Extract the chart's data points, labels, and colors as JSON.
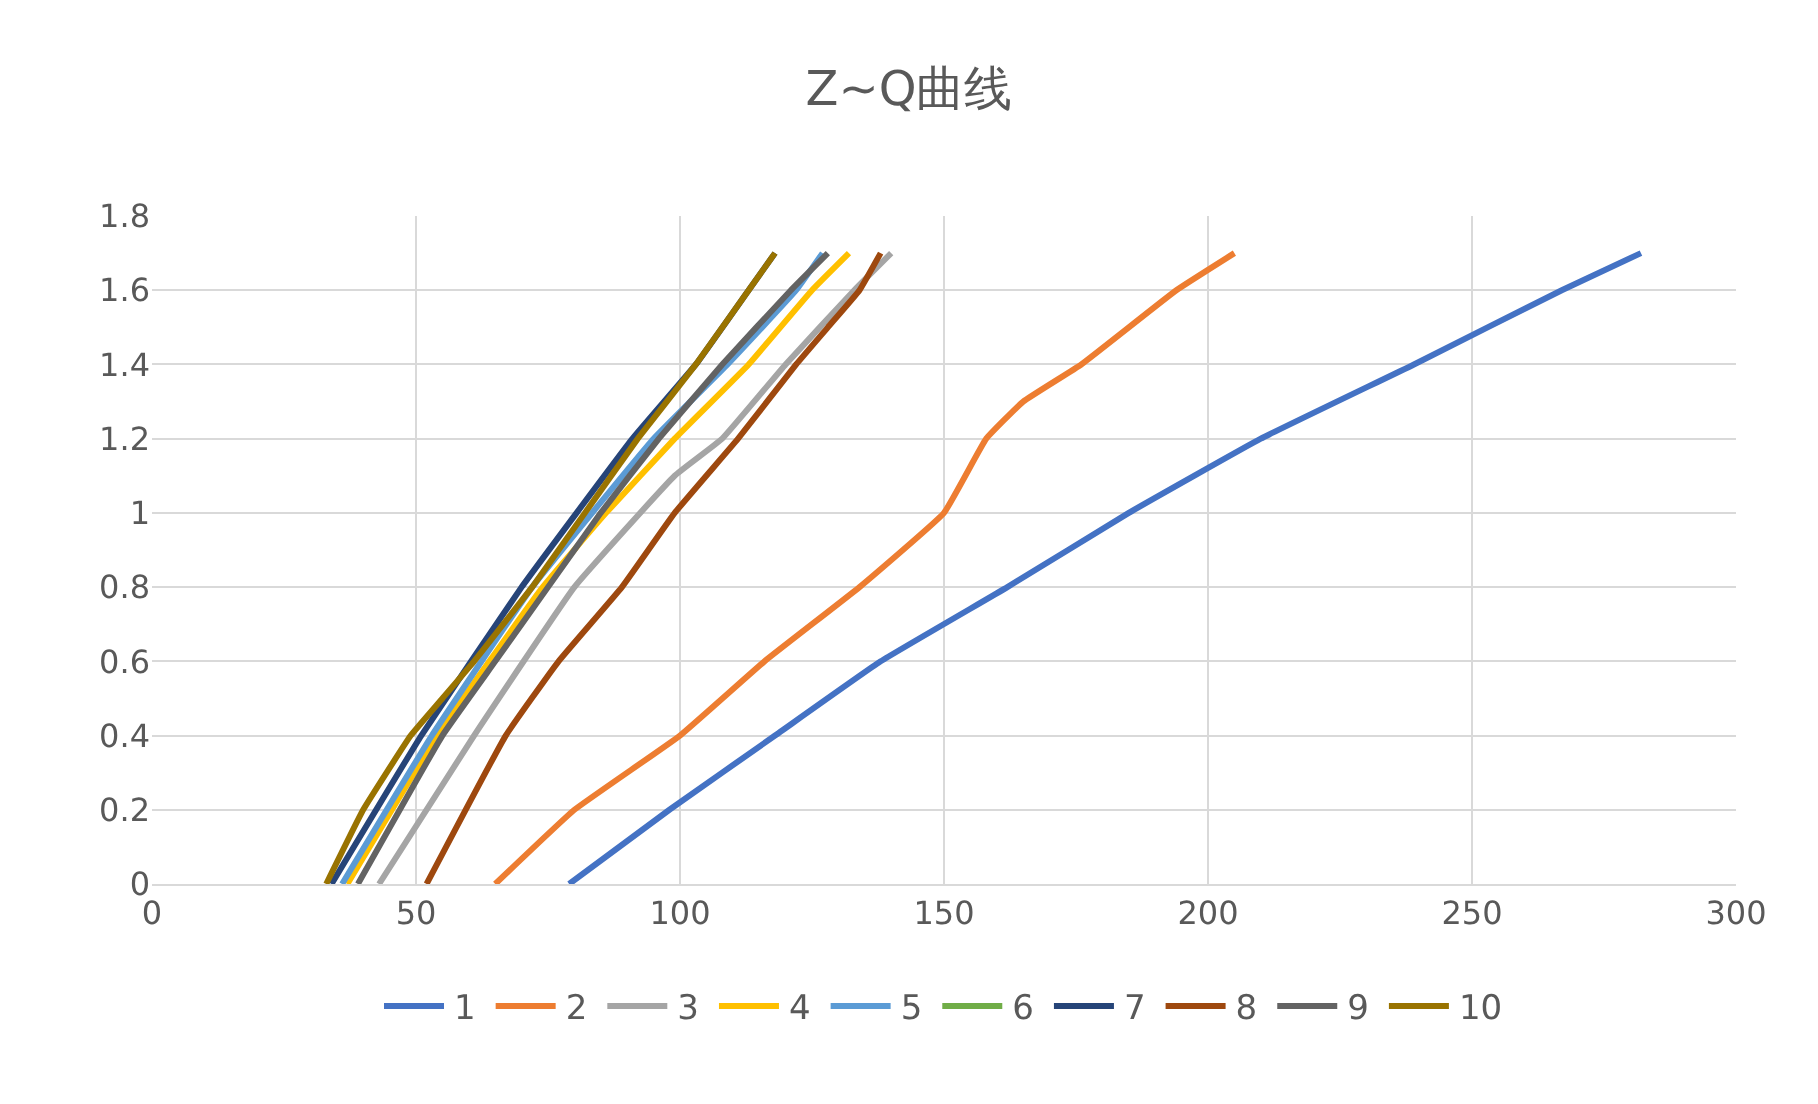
{
  "chart_data": {
    "type": "line",
    "title": "Z~Q曲线",
    "xlim": [
      0,
      300
    ],
    "xticks": [
      0,
      50,
      100,
      150,
      200,
      250,
      300
    ],
    "ylim": [
      0,
      1.8
    ],
    "yticks": [
      0,
      0.2,
      0.4,
      0.6,
      0.8,
      1,
      1.2,
      1.4,
      1.6,
      1.8
    ],
    "grid": true,
    "legend": "bottom",
    "marker": "none",
    "line_style": "solid",
    "series": [
      {
        "name": "1",
        "color": "#4472c4",
        "x": [
          79,
          98,
          118,
          138,
          162,
          185,
          210,
          239,
          267,
          282
        ],
        "values": [
          0,
          0.2,
          0.4,
          0.6,
          0.8,
          1,
          1.2,
          1.4,
          1.6,
          1.7
        ]
      },
      {
        "name": "2",
        "color": "#ed7d31",
        "x": [
          65,
          80,
          100,
          116,
          134,
          150,
          158,
          165,
          176,
          194,
          205
        ],
        "values": [
          0,
          0.2,
          0.4,
          0.6,
          0.8,
          1,
          1.2,
          1.3,
          1.4,
          1.6,
          1.7
        ]
      },
      {
        "name": "3",
        "color": "#a5a5a5",
        "x": [
          43,
          61,
          80,
          99,
          108,
          120,
          133,
          140
        ],
        "values": [
          0,
          0.4,
          0.8,
          1.1,
          1.2,
          1.4,
          1.6,
          1.7
        ]
      },
      {
        "name": "4",
        "color": "#ffc000",
        "x": [
          37,
          54,
          74,
          86,
          99,
          113,
          125,
          132
        ],
        "values": [
          0,
          0.4,
          0.8,
          1,
          1.2,
          1.4,
          1.6,
          1.7
        ]
      },
      {
        "name": "5",
        "color": "#5b9bd5",
        "x": [
          36,
          53,
          72,
          95,
          109,
          122,
          127
        ],
        "values": [
          0,
          0.4,
          0.8,
          1.2,
          1.4,
          1.6,
          1.7
        ]
      },
      {
        "name": "6",
        "color": "#70ad47",
        "x": [
          null
        ],
        "values": [
          null
        ]
      },
      {
        "name": "7",
        "color": "#264478",
        "x": [
          34,
          51,
          70,
          91,
          103,
          113,
          118
        ],
        "values": [
          0,
          0.4,
          0.8,
          1.2,
          1.4,
          1.6,
          1.7
        ]
      },
      {
        "name": "8",
        "color": "#9e480e",
        "x": [
          52,
          67,
          77,
          89,
          99,
          111,
          122,
          128,
          134,
          138
        ],
        "values": [
          0,
          0.4,
          0.6,
          0.8,
          1,
          1.2,
          1.4,
          1.5,
          1.6,
          1.7
        ]
      },
      {
        "name": "9",
        "color": "#636363",
        "x": [
          39,
          55,
          65,
          75,
          85,
          96,
          108,
          121,
          128
        ],
        "values": [
          0,
          0.4,
          0.6,
          0.8,
          1,
          1.2,
          1.4,
          1.6,
          1.7
        ]
      },
      {
        "name": "10",
        "color": "#997300",
        "x": [
          33,
          40,
          49,
          55,
          61,
          72,
          82,
          92,
          103,
          113,
          118
        ],
        "values": [
          0,
          0.2,
          0.4,
          0.5,
          0.6,
          0.8,
          1,
          1.2,
          1.4,
          1.6,
          1.7
        ]
      }
    ]
  }
}
